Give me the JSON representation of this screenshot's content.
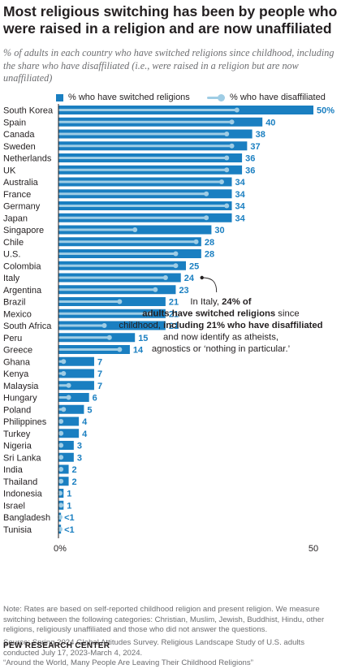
{
  "colors": {
    "bar": "#1a7fc1",
    "disaffiliated": "#9fcde5",
    "label": "#1a7fc1",
    "text": "#231f20",
    "muted": "#6d6e71",
    "axis": "#231f20"
  },
  "chart_data": {
    "type": "bar",
    "orientation": "horizontal",
    "title": "Most religious switching has been by people who were raised in a religion and are now unaffiliated",
    "subtitle": "% of adults in each country who have switched religions since childhood, including the share who have disaffiliated (i.e., were raised in a religion but are now unaffiliated)",
    "legend": {
      "switched": "% who have switched religions",
      "disaffiliated": "% who have disaffiliated"
    },
    "xlim": [
      0,
      50
    ],
    "axis_ticks": [
      "0%",
      "50"
    ],
    "categories": [
      "South Korea",
      "Spain",
      "Canada",
      "Sweden",
      "Netherlands",
      "UK",
      "Australia",
      "France",
      "Germany",
      "Japan",
      "Singapore",
      "Chile",
      "U.S.",
      "Colombia",
      "Italy",
      "Argentina",
      "Brazil",
      "Mexico",
      "South Africa",
      "Peru",
      "Greece",
      "Ghana",
      "Kenya",
      "Malaysia",
      "Hungary",
      "Poland",
      "Philippines",
      "Turkey",
      "Nigeria",
      "Sri Lanka",
      "India",
      "Thailand",
      "Indonesia",
      "Israel",
      "Bangladesh",
      "Tunisia"
    ],
    "series": [
      {
        "name": "% who have switched religions",
        "values": [
          50,
          40,
          38,
          37,
          36,
          36,
          34,
          34,
          34,
          34,
          30,
          28,
          28,
          25,
          24,
          23,
          21,
          21,
          21,
          15,
          14,
          7,
          7,
          7,
          6,
          5,
          4,
          4,
          3,
          3,
          2,
          2,
          1,
          1,
          0.5,
          0.5
        ],
        "labels": [
          "50%",
          "40",
          "38",
          "37",
          "36",
          "36",
          "34",
          "34",
          "34",
          "34",
          "30",
          "28",
          "28",
          "25",
          "24",
          "23",
          "21",
          "21",
          "21",
          "15",
          "14",
          "7",
          "7",
          "7",
          "6",
          "5",
          "4",
          "4",
          "3",
          "3",
          "2",
          "2",
          "1",
          "1",
          "<1",
          "<1"
        ]
      },
      {
        "name": "% who have disaffiliated",
        "values": [
          35,
          34,
          33,
          34,
          33,
          33,
          32,
          29,
          33,
          29,
          15,
          27,
          23,
          23,
          21,
          19,
          12,
          18,
          9,
          10,
          12,
          1,
          1,
          2,
          2,
          1,
          0.5,
          0.5,
          0.5,
          0.5,
          0.5,
          0.5,
          0.3,
          0.5,
          0.2,
          0.2
        ]
      }
    ],
    "annotation": {
      "parts": [
        {
          "text": "In Italy, ",
          "bold": false
        },
        {
          "text": "24% of adults have switched religions",
          "bold": true
        },
        {
          "text": " since childhood, ",
          "bold": false
        },
        {
          "text": "including 21% who have disaffiliated",
          "bold": true
        },
        {
          "text": " and now identify as atheists, agnostics or ‘nothing in particular.’",
          "bold": false
        }
      ]
    }
  },
  "note": "Note: Rates are based on self-reported childhood religion and present religion. We measure switching between the following categories: Christian, Muslim, Jewish, Buddhist, Hindu, other religions, religiously unaffiliated and those who did not answer the questions.",
  "source": "Source: Spring 2024 Global Attitudes Survey. Religious Landscape Study of U.S. adults conducted July 17, 2023-March 4, 2024.",
  "report": "“Around the World, Many People Are Leaving Their Childhood Religions”",
  "brand": "PEW RESEARCH CENTER"
}
